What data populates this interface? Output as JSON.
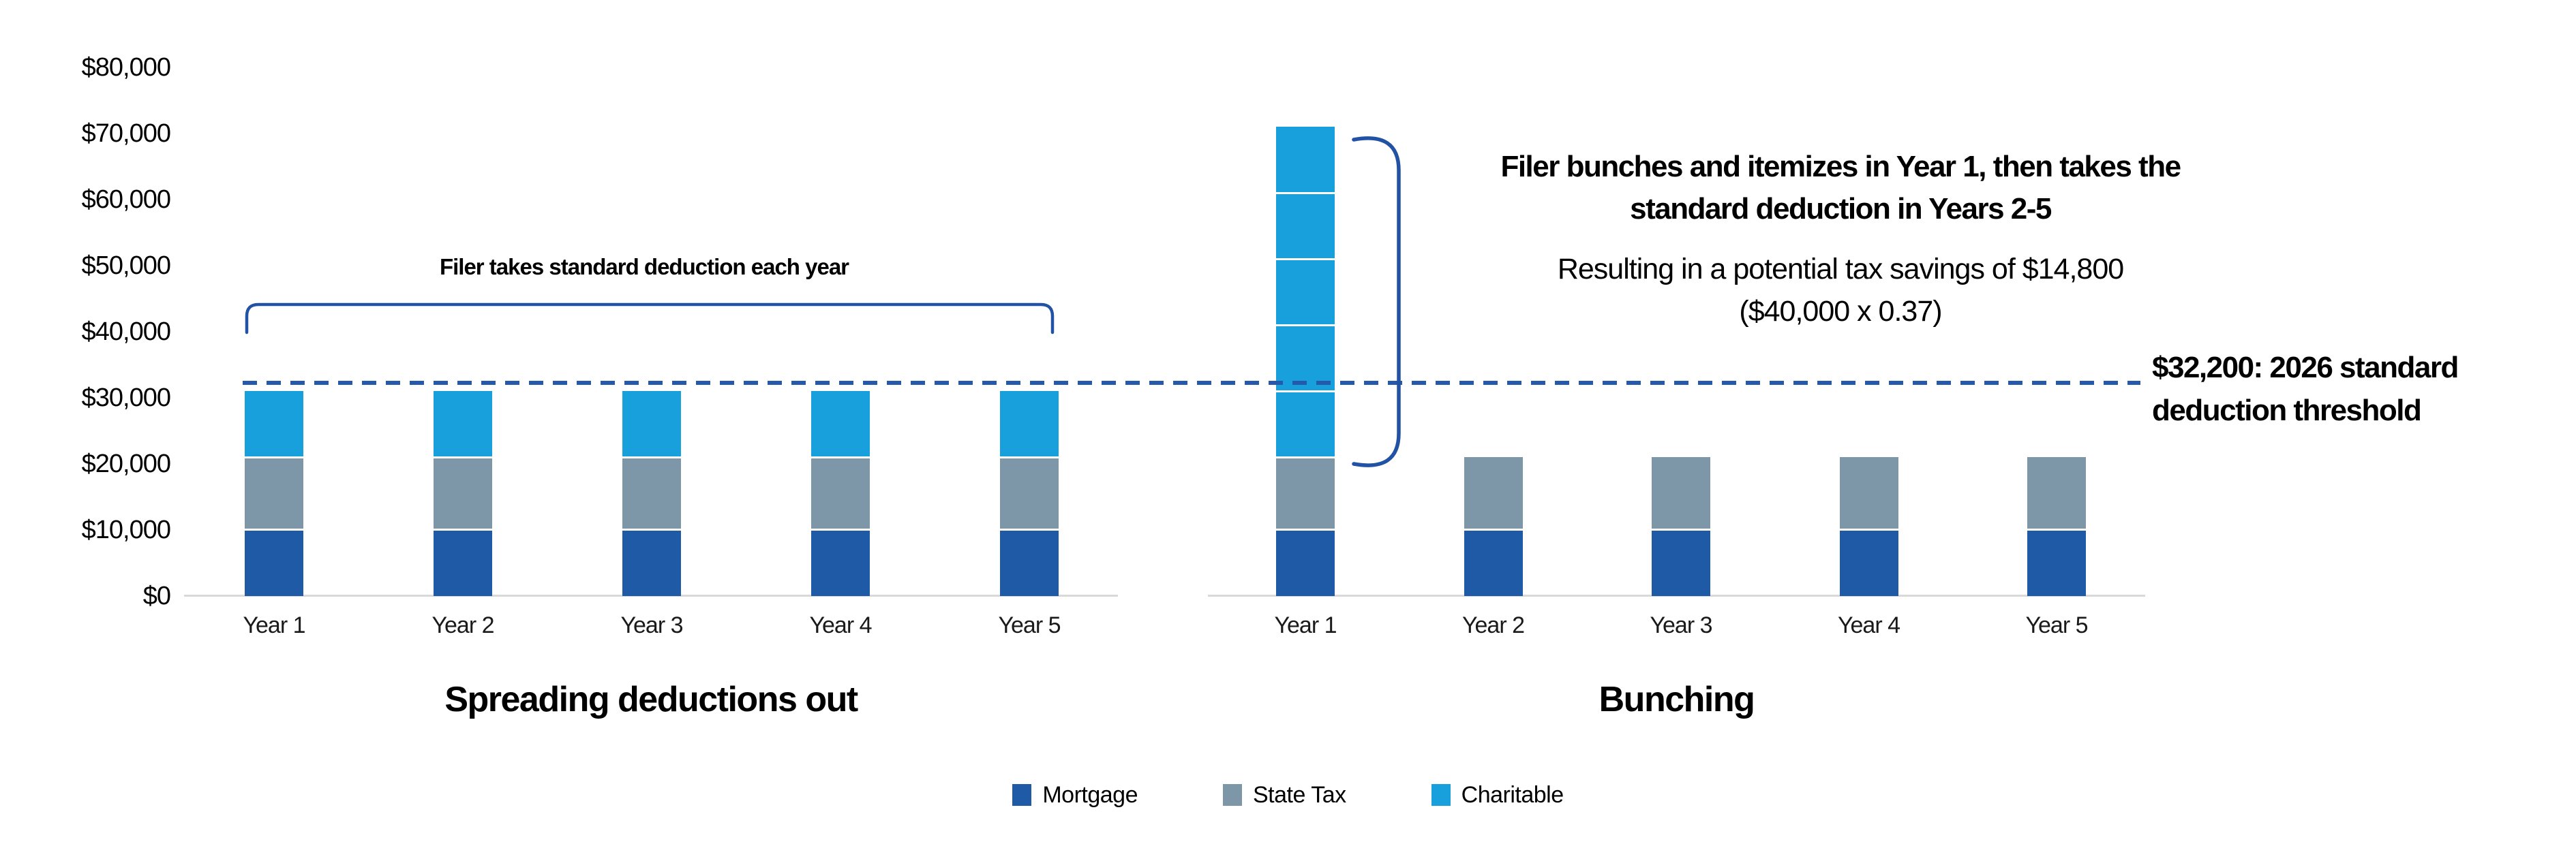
{
  "chart_data": [
    {
      "type": "bar",
      "stacked": true,
      "title": "Spreading deductions out",
      "categories": [
        "Year 1",
        "Year 2",
        "Year 3",
        "Year 4",
        "Year 5"
      ],
      "series": [
        {
          "name": "Mortgage",
          "color_key": "mortgage",
          "values": [
            10000,
            10000,
            10000,
            10000,
            10000
          ]
        },
        {
          "name": "State Tax",
          "color_key": "state_tax",
          "values": [
            11000,
            11000,
            11000,
            11000,
            11000
          ]
        },
        {
          "name": "Charitable",
          "color_key": "charitable",
          "chunk": 10000,
          "values": [
            10000,
            10000,
            10000,
            10000,
            10000
          ]
        }
      ],
      "bar_totals": [
        31000,
        31000,
        31000,
        31000,
        31000
      ],
      "annotation": "Filer takes standard deduction each year",
      "ylim": [
        0,
        80000
      ],
      "grid": false,
      "legend_position": "bottom"
    },
    {
      "type": "bar",
      "stacked": true,
      "title": "Bunching",
      "categories": [
        "Year 1",
        "Year 2",
        "Year 3",
        "Year 4",
        "Year 5"
      ],
      "series": [
        {
          "name": "Mortgage",
          "color_key": "mortgage",
          "values": [
            10000,
            10000,
            10000,
            10000,
            10000
          ]
        },
        {
          "name": "State Tax",
          "color_key": "state_tax",
          "values": [
            11000,
            11000,
            11000,
            11000,
            11000
          ]
        },
        {
          "name": "Charitable",
          "color_key": "charitable",
          "chunk": 10000,
          "values": [
            50000,
            0,
            0,
            0,
            0
          ]
        }
      ],
      "bar_totals": [
        71000,
        21000,
        21000,
        21000,
        21000
      ],
      "annotation_bold_line1": "Filer bunches and itemizes in Year 1, then takes the",
      "annotation_bold_line2": "standard deduction in Years 2-5",
      "annotation_note_line1": "Resulting in a potential tax savings of $14,800",
      "annotation_note_line2": "($40,000 x 0.37)",
      "ylim": [
        0,
        80000
      ],
      "grid": false,
      "legend_position": "bottom"
    }
  ],
  "y_axis": {
    "tick_values": [
      0,
      10000,
      20000,
      30000,
      40000,
      50000,
      60000,
      70000,
      80000
    ],
    "tick_labels": [
      "$0",
      "$10,000",
      "$20,000",
      "$30,000",
      "$40,000",
      "$50,000",
      "$60,000",
      "$70,000",
      "$80,000"
    ]
  },
  "threshold_line": {
    "value": 32200,
    "label_line1": "$32,200: 2026 standard",
    "label_line2": "deduction threshold",
    "full_label": "$32,200: 2026 standard deduction threshold",
    "style": "dashed"
  },
  "legend": {
    "items": [
      {
        "label": "Mortgage",
        "color_key": "mortgage"
      },
      {
        "label": "State Tax",
        "color_key": "state_tax"
      },
      {
        "label": "Charitable",
        "color_key": "charitable"
      }
    ]
  },
  "colors": {
    "mortgage": "#1E5AA5",
    "state_tax": "#7E97A8",
    "charitable": "#18A0DC",
    "bracket": "#2152A3",
    "dashed_line": "#2459AB",
    "axis_line": "#D9D9D9",
    "text": "#000000"
  }
}
